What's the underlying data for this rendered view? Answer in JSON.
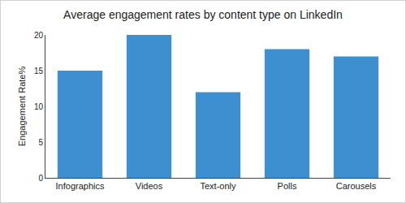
{
  "chart_data": {
    "type": "bar",
    "title": "Average engagement rates by content type on LinkedIn",
    "y_label": "Engagement Rate%",
    "categories": [
      "Infographics",
      "Videos",
      "Text-only",
      "Polls",
      "Carousels"
    ],
    "values": [
      15,
      20,
      12,
      18,
      17
    ],
    "color": "#3d8fcf",
    "ylim": [
      0,
      20
    ],
    "yticks": [
      0,
      5,
      10,
      15,
      20
    ],
    "grid": false
  }
}
